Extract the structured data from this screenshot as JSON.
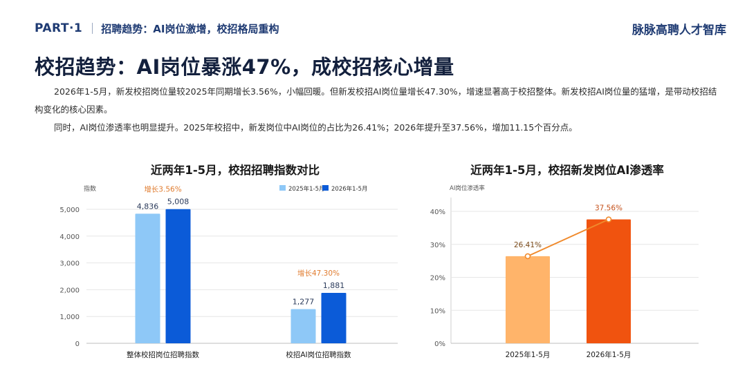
{
  "header": {
    "part_label": "PART·1",
    "part_title": "招聘趋势：AI岗位激增，校招格局重构",
    "brand": "脉脉高聘人才智库"
  },
  "headline": "校招趋势：AI岗位暴涨47%，成校招核心增量",
  "paragraphs": [
    "2026年1-5月，新发校招岗位量较2025年同期增长3.56%，小幅回暖。但新发校招AI岗位量增长47.30%，增速显著高于校招整体。新发校招AI岗位量的猛增，是带动校招结构变化的核心因素。",
    "同时，AI岗位渗透率也明显提升。2025年校招中，新发岗位中AI岗位的占比为26.41%；2026年提升至37.56%，增加11.15个百分点。"
  ],
  "colors": {
    "series_2025": "#8ec8f7",
    "series_2026": "#0b5bd8",
    "bar_2025_pen": "#ffb46a",
    "bar_2026_pen": "#f0530f",
    "line_pen": "#f08a2c",
    "growth_text": "#e07b2e",
    "axis_text": "#555555",
    "grid": "#e6e6e6"
  },
  "chart_data": [
    {
      "type": "bar",
      "title": "近两年1-5月，校招招聘指数对比",
      "ylabel": "指数",
      "ylim": [
        0,
        5000
      ],
      "yticks": [
        0,
        1000,
        2000,
        3000,
        4000,
        5000
      ],
      "ytick_labels": [
        "0",
        "1,000",
        "2,000",
        "3,000",
        "4,000",
        "5,000"
      ],
      "categories": [
        "整体校招岗位招聘指数",
        "校招AI岗位招聘指数"
      ],
      "series": [
        {
          "name": "2025年1-5月",
          "values": [
            4836,
            1277
          ],
          "labels": [
            "4,836",
            "1,277"
          ]
        },
        {
          "name": "2026年1-5月",
          "values": [
            5008,
            1881
          ],
          "labels": [
            "5,008",
            "1,881"
          ]
        }
      ],
      "annotations": [
        "增长3.56%",
        "增长47.30%"
      ],
      "legend": "top-right",
      "grid": true
    },
    {
      "type": "bar",
      "title": "近两年1-5月，校招新发岗位AI渗透率",
      "ylabel": "AI岗位渗透率",
      "ylim": [
        0,
        40
      ],
      "yticks": [
        0,
        10,
        20,
        30,
        40
      ],
      "ytick_labels": [
        "0%",
        "10%",
        "20%",
        "30%",
        "40%"
      ],
      "categories": [
        "2025年1-5月",
        "2026年1-5月"
      ],
      "values": [
        26.41,
        37.56
      ],
      "labels": [
        "26.41%",
        "37.56%"
      ],
      "overlay_line": true,
      "grid": true
    }
  ]
}
